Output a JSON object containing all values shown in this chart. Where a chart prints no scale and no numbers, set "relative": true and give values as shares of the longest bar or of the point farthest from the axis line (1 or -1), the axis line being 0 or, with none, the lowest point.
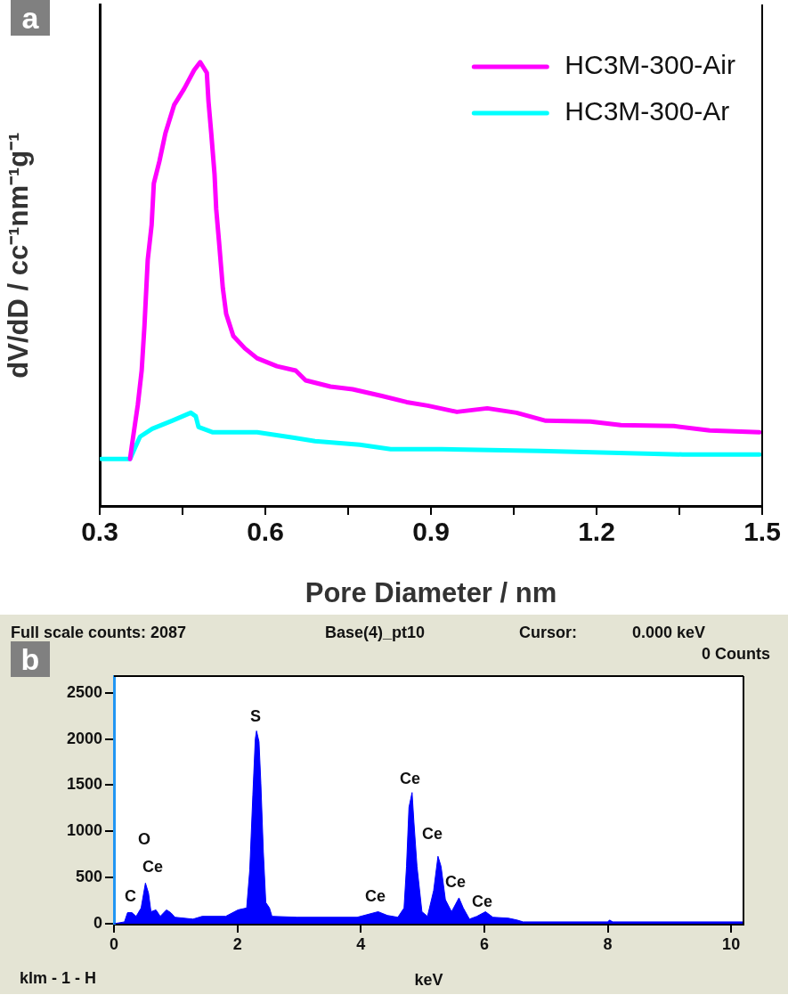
{
  "chart_data": [
    {
      "type": "line",
      "title": "a",
      "xlabel": "Pore Diameter / nm",
      "ylabel": "dV/dD / cc⁻¹nm⁻¹g⁻¹",
      "relative": true,
      "xlim": [
        0.3,
        1.5
      ],
      "xticks": [
        0.3,
        {
          "value": 0.45,
          "label": null
        },
        0.6,
        {
          "value": 0.75,
          "label": null
        },
        0.9,
        {
          "value": 1.05,
          "label": null
        },
        1.2,
        {
          "value": 1.35,
          "label": null
        },
        1.5
      ],
      "legend": "top right",
      "series": [
        {
          "name": "HC3M-300-Air",
          "color": "#ff00ff",
          "x": [
            0.355,
            0.358,
            0.369,
            0.376,
            0.381,
            0.387,
            0.394,
            0.398,
            0.408,
            0.419,
            0.435,
            0.453,
            0.471,
            0.482,
            0.494,
            0.497,
            0.502,
            0.508,
            0.511,
            0.516,
            0.523,
            0.529,
            0.542,
            0.563,
            0.585,
            0.621,
            0.655,
            0.673,
            0.718,
            0.758,
            0.811,
            0.856,
            0.894,
            0.947,
            1.002,
            1.055,
            1.108,
            1.189,
            1.244,
            1.34,
            1.405,
            1.495
          ],
          "values": [
            0.106,
            0.134,
            0.228,
            0.305,
            0.405,
            0.555,
            0.633,
            0.727,
            0.776,
            0.84,
            0.904,
            0.94,
            0.982,
            1.0,
            0.976,
            0.912,
            0.84,
            0.747,
            0.669,
            0.597,
            0.491,
            0.433,
            0.383,
            0.355,
            0.333,
            0.315,
            0.305,
            0.283,
            0.269,
            0.263,
            0.248,
            0.234,
            0.226,
            0.212,
            0.22,
            0.21,
            0.192,
            0.19,
            0.182,
            0.18,
            0.17,
            0.166
          ]
        },
        {
          "name": "HC3M-300-Ar",
          "color": "#00ffff",
          "x": [
            0.303,
            0.355,
            0.365,
            0.373,
            0.395,
            0.431,
            0.465,
            0.474,
            0.479,
            0.505,
            0.585,
            0.65,
            0.69,
            0.771,
            0.827,
            0.919,
            1.098,
            1.356,
            1.495
          ],
          "values": [
            0.106,
            0.106,
            0.134,
            0.156,
            0.174,
            0.192,
            0.21,
            0.202,
            0.178,
            0.166,
            0.166,
            0.154,
            0.146,
            0.138,
            0.128,
            0.128,
            0.124,
            0.116,
            0.116
          ]
        }
      ]
    },
    {
      "type": "area",
      "title": "b",
      "xlabel": "keV",
      "xlim": [
        0,
        10.2
      ],
      "xticks": [
        0,
        2,
        4,
        6,
        8,
        10
      ],
      "ylim": [
        0,
        2680
      ],
      "yticks": [
        0,
        500,
        1000,
        1500,
        2000,
        2500
      ],
      "annotations": [
        "Full scale counts: 2087",
        "Base(4)_pt10",
        "Cursor:",
        "0.000 keV",
        "0 Counts",
        "klm - 1 - H",
        "C",
        "O",
        "Ce",
        "S",
        "Ce",
        "Ce",
        "Ce",
        "Ce",
        "Ce"
      ],
      "x": [
        0,
        0.17,
        0.22,
        0.29,
        0.36,
        0.44,
        0.51,
        0.56,
        0.6,
        0.68,
        0.75,
        0.85,
        0.92,
        0.99,
        1.28,
        1.43,
        1.81,
        2.01,
        2.15,
        2.2,
        2.25,
        2.29,
        2.31,
        2.35,
        2.38,
        2.42,
        2.46,
        2.52,
        2.56,
        2.97,
        3.94,
        4.28,
        4.43,
        4.6,
        4.7,
        4.74,
        4.78,
        4.83,
        4.86,
        4.91,
        4.99,
        5.08,
        5.18,
        5.25,
        5.3,
        5.37,
        5.47,
        5.59,
        5.66,
        5.76,
        5.88,
        6.02,
        6.14,
        6.39,
        6.53,
        6.63,
        8.0,
        8.03,
        8.08,
        10.2
      ],
      "series": [
        {
          "color": "#0000ff",
          "values": [
            0,
            20,
            120,
            120,
            80,
            170,
            440,
            330,
            130,
            150,
            80,
            150,
            120,
            70,
            50,
            80,
            80,
            150,
            170,
            580,
            1390,
            2000,
            2087,
            1970,
            1520,
            780,
            230,
            170,
            80,
            70,
            70,
            130,
            90,
            70,
            170,
            620,
            1260,
            1420,
            1100,
            620,
            130,
            80,
            360,
            730,
            620,
            260,
            130,
            280,
            170,
            50,
            80,
            130,
            70,
            60,
            40,
            20,
            20,
            40,
            20,
            20
          ]
        }
      ]
    }
  ]
}
